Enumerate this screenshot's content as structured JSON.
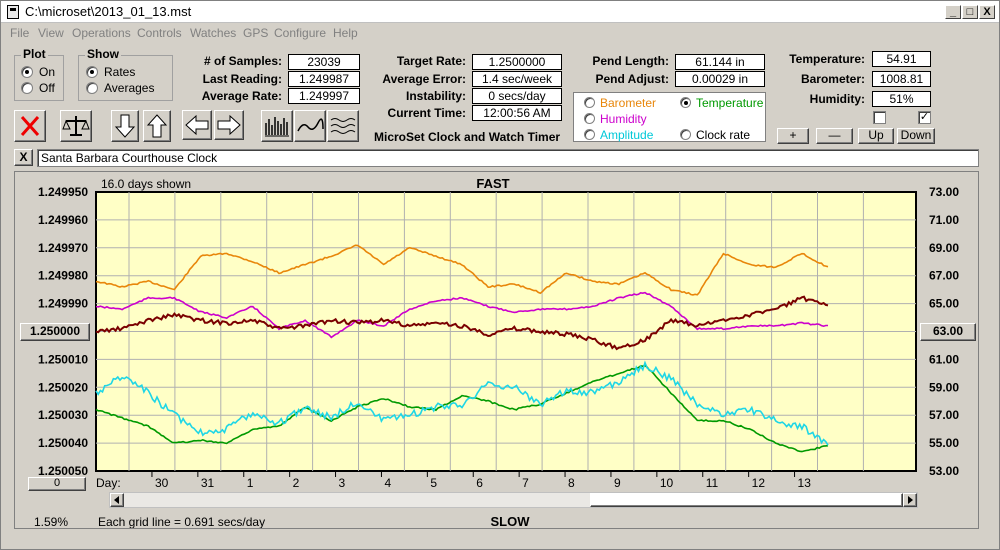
{
  "title": "C:\\microset\\2013_01_13.mst",
  "window_buttons": {
    "minimize": "_",
    "maximize": "□",
    "close": "X"
  },
  "menu": [
    "File",
    "View",
    "Operations",
    "Controls",
    "Watches",
    "GPS",
    "Configure",
    "Help"
  ],
  "plot": {
    "title": "Plot",
    "on": "On",
    "off": "Off",
    "selected": "On"
  },
  "show": {
    "title": "Show",
    "rates": "Rates",
    "averages": "Averages",
    "selected": "Rates"
  },
  "stats_left": [
    {
      "label": "# of Samples:",
      "value": "23039"
    },
    {
      "label": "Last Reading:",
      "value": "1.249987"
    },
    {
      "label": "Average Rate:",
      "value": "1.249997"
    }
  ],
  "stats_mid": [
    {
      "label": "Target Rate:",
      "value": "1.2500000"
    },
    {
      "label": "Average Error:",
      "value": "1.4 sec/week"
    },
    {
      "label": "Instability:",
      "value": "0 secs/day"
    },
    {
      "label": "Current Time:",
      "value": "12:00:56 AM"
    }
  ],
  "app_caption": "MicroSet Clock and Watch Timer",
  "pend": [
    {
      "label": "Pend Length:",
      "value": "61.144 in"
    },
    {
      "label": "Pend Adjust:",
      "value": "0.00029 in"
    }
  ],
  "series_options": [
    {
      "label": "Barometer",
      "color": "#e8860a",
      "selected": false
    },
    {
      "label": "Temperature",
      "color": "#009900",
      "selected": true
    },
    {
      "label": "Humidity",
      "color": "#cc00cc",
      "selected": false
    },
    {
      "label": "Clock rate",
      "color": "#000000",
      "selected": false
    },
    {
      "label": "Amplitude",
      "color": "#00c8d8",
      "selected": false
    }
  ],
  "env": [
    {
      "label": "Temperature:",
      "value": "54.91"
    },
    {
      "label": "Barometer:",
      "value": "1008.81"
    },
    {
      "label": "Humidity:",
      "value": "51%"
    }
  ],
  "checkboxes": [
    {
      "checked": false,
      "glyph": ""
    },
    {
      "checked": true,
      "glyph": "✓"
    }
  ],
  "scale_buttons": {
    "plus": "+",
    "minus": "—",
    "up": "Up",
    "down": "Down"
  },
  "toolbar_icons": [
    "stop-icon",
    "balance-icon",
    "arrow-down-icon",
    "arrow-up-icon",
    "arrow-left-icon",
    "arrow-right-icon",
    "bars-icon",
    "wave-icon",
    "multiwave-icon"
  ],
  "note": {
    "close": "X",
    "text": "Santa Barbara Courthouse Clock"
  },
  "chart_header": {
    "days_shown": "16.0 days shown",
    "fast": "FAST",
    "slow": "SLOW",
    "grid_note": "Each grid line = 0.691 secs/day",
    "percent": "1.59%",
    "day_label": "Day:",
    "left_button": "1.250000",
    "right_button": "63.00",
    "bottom_left_button": "0"
  },
  "chart_data": {
    "type": "line",
    "xlabel": "Day:",
    "x_ticks": [
      "30",
      "31",
      "1",
      "2",
      "3",
      "4",
      "5",
      "6",
      "7",
      "8",
      "9",
      "10",
      "11",
      "12",
      "13"
    ],
    "left_axis": {
      "ticks": [
        "1.249950",
        "1.249960",
        "1.249970",
        "1.249980",
        "1.249990",
        "1.250000",
        "1.250010",
        "1.250020",
        "1.250030",
        "1.250040",
        "1.250050"
      ],
      "ylim": [
        1.24995,
        1.25005
      ],
      "inverted": true
    },
    "right_axis": {
      "ticks": [
        "73.00",
        "71.00",
        "69.00",
        "67.00",
        "65.00",
        "63.00",
        "61.00",
        "59.00",
        "57.00",
        "55.00",
        "53.00"
      ],
      "ylim": [
        53,
        73
      ]
    },
    "grid": true,
    "series": [
      {
        "name": "Barometer",
        "color": "#e8860a",
        "y": [
          1.249982,
          1.249984,
          1.249982,
          1.249985,
          1.249973,
          1.249972,
          1.249975,
          1.249979,
          1.249976,
          1.249973,
          1.249969,
          1.249976,
          1.24997,
          1.249973,
          1.249976,
          1.249984,
          1.249983,
          1.249986,
          1.249979,
          1.249982,
          1.249983,
          1.249979,
          1.249985,
          1.249987,
          1.249972,
          1.249976,
          1.249977,
          1.249972,
          1.249977
        ]
      },
      {
        "name": "Humidity",
        "color": "#cc00cc",
        "y": [
          1.249991,
          1.249992,
          1.249988,
          1.249988,
          1.249993,
          1.249995,
          1.249991,
          1.249999,
          1.249996,
          1.250002,
          1.249996,
          1.249998,
          1.249992,
          1.249989,
          1.249988,
          1.249991,
          1.249993,
          1.249992,
          1.249992,
          1.249991,
          1.249988,
          1.249986,
          1.249991,
          1.249999,
          1.249999,
          1.249998,
          1.249998,
          1.249997,
          1.249998
        ]
      },
      {
        "name": "Clock rate",
        "color": "#7a0000",
        "y": [
          1.25,
          1.249999,
          1.249996,
          1.249994,
          1.249996,
          1.249997,
          1.249996,
          1.249999,
          1.249998,
          1.249996,
          1.249997,
          1.249996,
          1.249998,
          1.249997,
          1.249998,
          1.250001,
          1.249999,
          1.25,
          1.250001,
          1.250003,
          1.250006,
          1.250003,
          1.249996,
          1.249998,
          1.249996,
          1.249994,
          1.249992,
          1.249988,
          1.249991
        ]
      },
      {
        "name": "Temperature",
        "color": "#009900",
        "y": [
          1.250028,
          1.250031,
          1.250034,
          1.25004,
          1.250039,
          1.25004,
          1.250035,
          1.250034,
          1.250027,
          1.250032,
          1.250027,
          1.250024,
          1.250027,
          1.250028,
          1.250023,
          1.250025,
          1.250028,
          1.250026,
          1.250022,
          1.250018,
          1.250015,
          1.250012,
          1.250022,
          1.250032,
          1.250032,
          1.250035,
          1.25004,
          1.250043,
          1.250041
        ]
      },
      {
        "name": "Amplitude",
        "color": "#1ed6e6",
        "y": [
          1.250022,
          1.250016,
          1.250022,
          1.25003,
          1.250036,
          1.250035,
          1.250029,
          1.250033,
          1.250027,
          1.250031,
          1.250025,
          1.250032,
          1.25003,
          1.250027,
          1.250026,
          1.250019,
          1.25002,
          1.250026,
          1.250021,
          1.250022,
          1.250018,
          1.250012,
          1.250017,
          1.250026,
          1.25003,
          1.250028,
          1.250032,
          1.250034,
          1.250041
        ]
      }
    ]
  }
}
